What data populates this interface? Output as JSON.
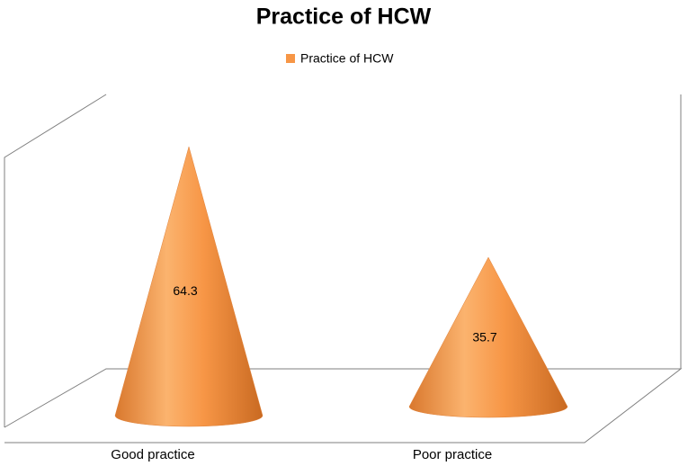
{
  "chart_data": {
    "type": "cone",
    "title": "Practice of HCW",
    "categories": [
      "Good practice",
      "Poor practice"
    ],
    "series": [
      {
        "name": "Practice of HCW",
        "color": "#f79646",
        "values": [
          64.3,
          35.7
        ]
      }
    ]
  }
}
